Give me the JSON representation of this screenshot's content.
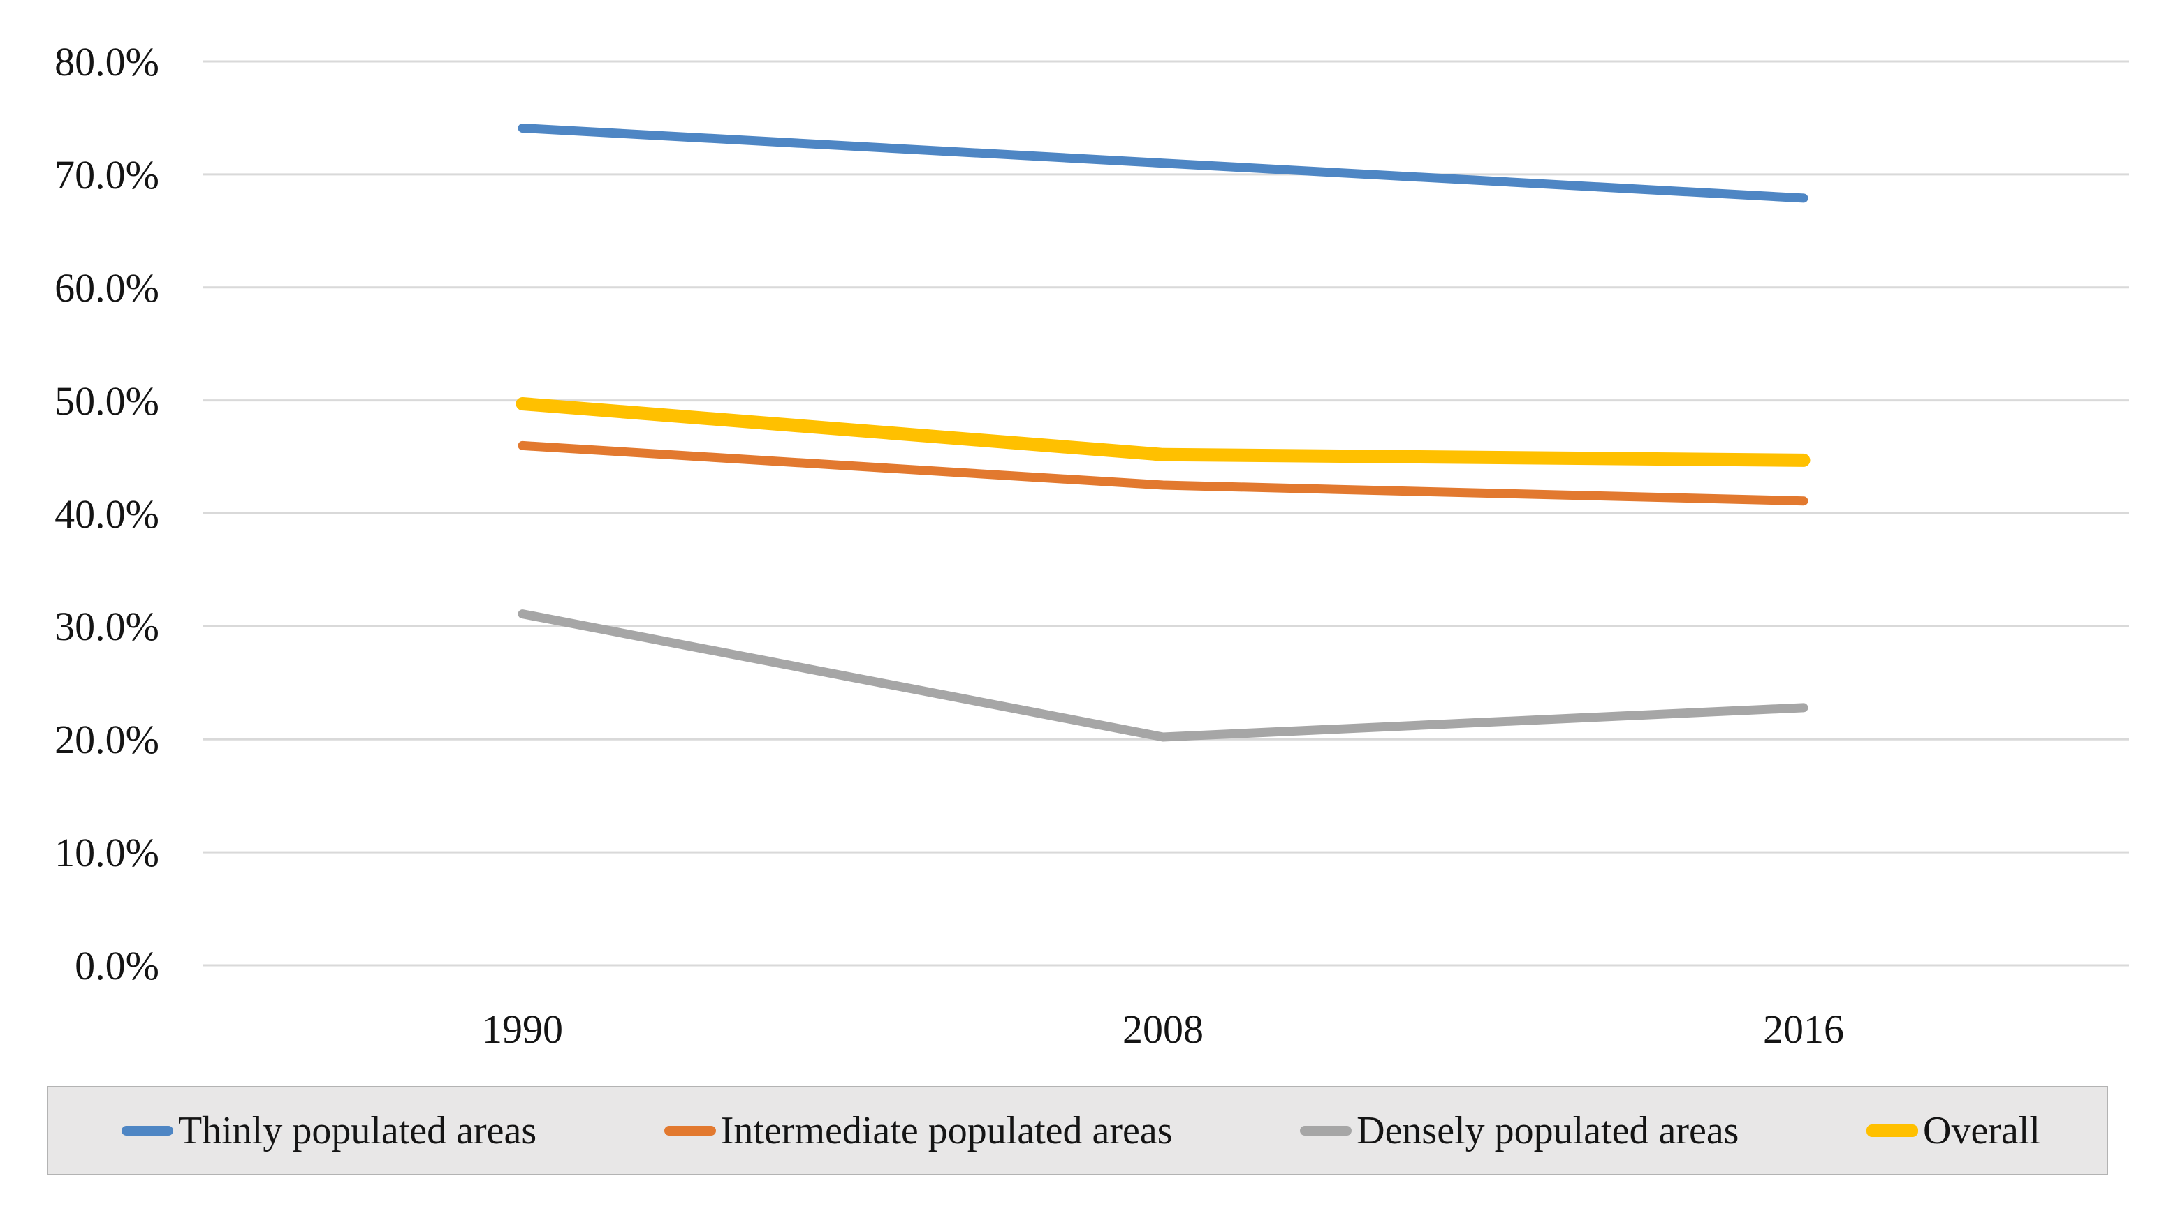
{
  "chart_data": {
    "type": "line",
    "title": "",
    "categories": [
      "1990",
      "2008",
      "2016"
    ],
    "series": [
      {
        "name": "Thinly populated areas",
        "color": "#4E86C4",
        "values": [
          74.1,
          71.0,
          67.9
        ],
        "stroke_width": 13
      },
      {
        "name": "Intermediate populated areas",
        "color": "#E2792F",
        "values": [
          46.0,
          42.5,
          41.1
        ],
        "stroke_width": 13
      },
      {
        "name": "Densely populated areas",
        "color": "#A6A6A6",
        "values": [
          31.1,
          20.2,
          22.8
        ],
        "stroke_width": 13
      },
      {
        "name": "Overall",
        "color": "#FFC000",
        "values": [
          49.7,
          45.2,
          44.7
        ],
        "stroke_width": 19
      }
    ],
    "xlabel": "",
    "ylabel": "",
    "ylim": [
      0,
      80
    ],
    "ytick_step": 10,
    "ytick_labels": [
      "80.0%",
      "70.0%",
      "60.0%",
      "50.0%",
      "40.0%",
      "30.0%",
      "20.0%",
      "10.0%",
      "0.0%"
    ],
    "grid": "horizontal-only",
    "gridline_color": "#d9d9d9",
    "legend_position": "bottom",
    "legend_background": "#e8e7e7",
    "legend_border": "#b3b3b3"
  }
}
